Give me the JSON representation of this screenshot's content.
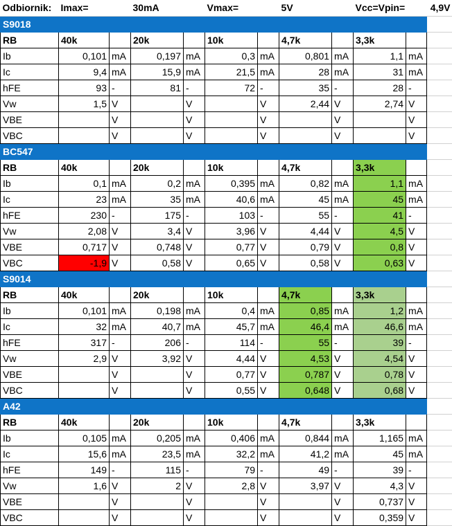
{
  "header": {
    "label1": "Odbiornik:",
    "label2": "Imax=",
    "value2": "30mA",
    "label3": "Vmax=",
    "value3": "5V",
    "label4": "Vcc=Vpin=",
    "value4": "4,9V"
  },
  "colors": {
    "section_bg": "#0f74c7",
    "green": "#8bd04f",
    "light_green": "#a9d08e",
    "red": "#ff0000"
  },
  "sections": [
    {
      "title": "S9018",
      "rb_label": "RB",
      "columns": [
        "40k",
        "20k",
        "10k",
        "4,7k",
        "3,3k"
      ],
      "rows": [
        {
          "label": "Ib",
          "values": [
            "0,101",
            "0,197",
            "0,3",
            "0,801",
            "1,1"
          ],
          "units": [
            "mA",
            "mA",
            "mA",
            "mA",
            "mA"
          ]
        },
        {
          "label": "Ic",
          "values": [
            "9,4",
            "15,9",
            "21,5",
            "28",
            "31"
          ],
          "units": [
            "mA",
            "mA",
            "mA",
            "mA",
            "mA"
          ]
        },
        {
          "label": "hFE",
          "values": [
            "93",
            "81",
            "72",
            "35",
            "28"
          ],
          "units": [
            "-",
            "-",
            "-",
            "-",
            "-"
          ]
        },
        {
          "label": "Vw",
          "values": [
            "1,5",
            "",
            "",
            "2,44",
            "2,74"
          ],
          "units": [
            "V",
            "V",
            "V",
            "V",
            "V"
          ]
        },
        {
          "label": "VBE",
          "values": [
            "",
            "",
            "",
            "",
            ""
          ],
          "units": [
            "V",
            "V",
            "V",
            "V",
            "V"
          ]
        },
        {
          "label": "VBC",
          "values": [
            "",
            "",
            "",
            "",
            ""
          ],
          "units": [
            "V",
            "V",
            "V",
            "V",
            "V"
          ]
        }
      ]
    },
    {
      "title": "BC547",
      "rb_label": "RB",
      "columns": [
        "40k",
        "20k",
        "10k",
        "4,7k",
        "3,3k"
      ],
      "rows": [
        {
          "label": "Ib",
          "values": [
            "0,1",
            "0,2",
            "0,395",
            "0,82",
            "1,1"
          ],
          "units": [
            "mA",
            "mA",
            "mA",
            "mA",
            "mA"
          ]
        },
        {
          "label": "Ic",
          "values": [
            "23",
            "35",
            "40,6",
            "45",
            "45"
          ],
          "units": [
            "mA",
            "mA",
            "mA",
            "mA",
            "mA"
          ]
        },
        {
          "label": "hFE",
          "values": [
            "230",
            "175",
            "103",
            "55",
            "41"
          ],
          "units": [
            "-",
            "-",
            "-",
            "-",
            "-"
          ]
        },
        {
          "label": "Vw",
          "values": [
            "2,08",
            "3,4",
            "3,96",
            "4,44",
            "4,5"
          ],
          "units": [
            "V",
            "V",
            "V",
            "V",
            "V"
          ]
        },
        {
          "label": "VBE",
          "values": [
            "0,717",
            "0,748",
            "0,77",
            "0,79",
            "0,8"
          ],
          "units": [
            "V",
            "V",
            "V",
            "V",
            "V"
          ]
        },
        {
          "label": "VBC",
          "values": [
            "-1,9",
            "0,58",
            "0,65",
            "0,58",
            "0,63"
          ],
          "units": [
            "V",
            "V",
            "V",
            "V",
            "V"
          ]
        }
      ]
    },
    {
      "title": "S9014",
      "rb_label": "RB",
      "columns": [
        "40k",
        "20k",
        "10k",
        "4,7k",
        "3,3k"
      ],
      "rows": [
        {
          "label": "Ib",
          "values": [
            "0,101",
            "0,198",
            "0,4",
            "0,85",
            "1,2"
          ],
          "units": [
            "mA",
            "mA",
            "mA",
            "mA",
            "mA"
          ]
        },
        {
          "label": "Ic",
          "values": [
            "32",
            "40,7",
            "45,7",
            "46,4",
            "46,6"
          ],
          "units": [
            "mA",
            "mA",
            "mA",
            "mA",
            "mA"
          ]
        },
        {
          "label": "hFE",
          "values": [
            "317",
            "206",
            "114",
            "55",
            "39"
          ],
          "units": [
            "-",
            "-",
            "-",
            "-",
            "-"
          ]
        },
        {
          "label": "Vw",
          "values": [
            "2,9",
            "3,92",
            "4,44",
            "4,53",
            "4,54"
          ],
          "units": [
            "V",
            "V",
            "V",
            "V",
            "V"
          ]
        },
        {
          "label": "VBE",
          "values": [
            "",
            "",
            "0,77",
            "0,787",
            "0,78"
          ],
          "units": [
            "V",
            "V",
            "V",
            "V",
            "V"
          ]
        },
        {
          "label": "VBC",
          "values": [
            "",
            "",
            "0,55",
            "0,648",
            "0,68"
          ],
          "units": [
            "V",
            "V",
            "V",
            "V",
            "V"
          ]
        }
      ]
    },
    {
      "title": "A42",
      "rb_label": "RB",
      "columns": [
        "40k",
        "20k",
        "10k",
        "4,7k",
        "3,3k"
      ],
      "rows": [
        {
          "label": "Ib",
          "values": [
            "0,105",
            "0,205",
            "0,406",
            "0,844",
            "1,165"
          ],
          "units": [
            "mA",
            "mA",
            "mA",
            "mA",
            "mA"
          ]
        },
        {
          "label": "Ic",
          "values": [
            "15,6",
            "23,5",
            "32,2",
            "41,2",
            "45"
          ],
          "units": [
            "mA",
            "mA",
            "mA",
            "mA",
            "mA"
          ]
        },
        {
          "label": "hFE",
          "values": [
            "149",
            "115",
            "79",
            "49",
            "39"
          ],
          "units": [
            "-",
            "-",
            "-",
            "-",
            "-"
          ]
        },
        {
          "label": "Vw",
          "values": [
            "1,6",
            "2",
            "2,8",
            "3,97",
            "4,3"
          ],
          "units": [
            "V",
            "V",
            "V",
            "V",
            "V"
          ]
        },
        {
          "label": "VBE",
          "values": [
            "",
            "",
            "",
            "",
            "0,737"
          ],
          "units": [
            "V",
            "V",
            "V",
            "V",
            "V"
          ]
        },
        {
          "label": "VBC",
          "values": [
            "",
            "",
            "",
            "",
            "0,359"
          ],
          "units": [
            "V",
            "V",
            "V",
            "V",
            "V"
          ]
        }
      ]
    }
  ]
}
